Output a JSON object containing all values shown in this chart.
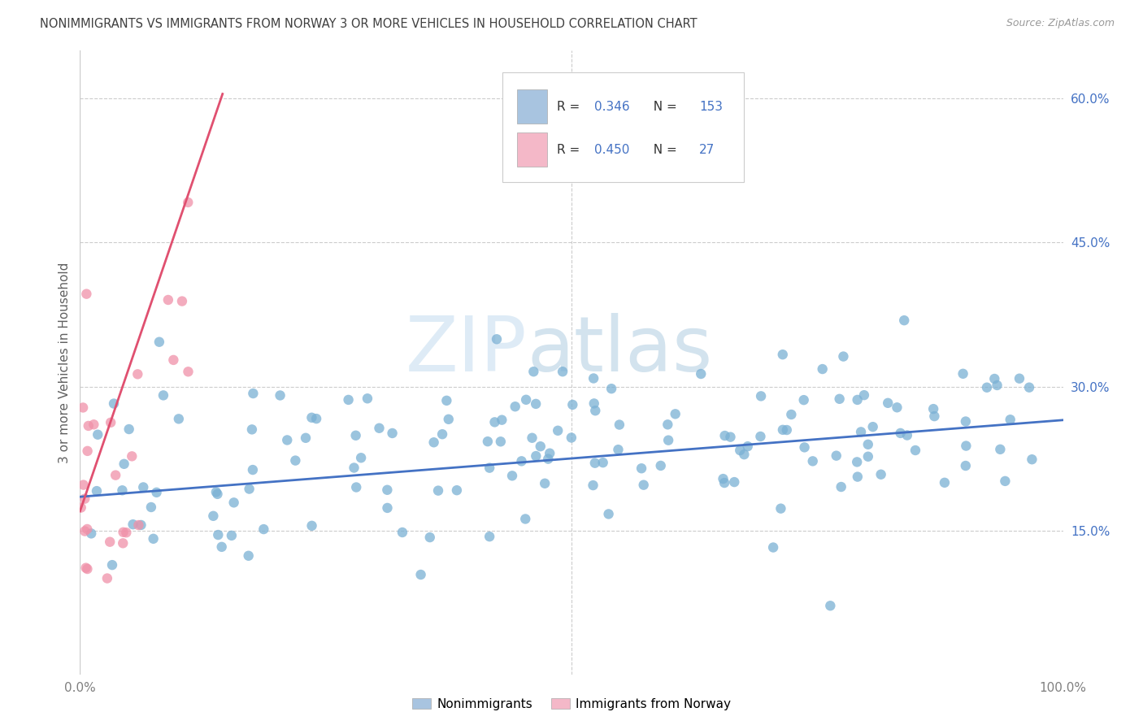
{
  "title": "NONIMMIGRANTS VS IMMIGRANTS FROM NORWAY 3 OR MORE VEHICLES IN HOUSEHOLD CORRELATION CHART",
  "source": "Source: ZipAtlas.com",
  "ylabel": "3 or more Vehicles in Household",
  "xlim": [
    0,
    1.0
  ],
  "ylim": [
    0,
    0.65
  ],
  "yticks": [
    0.15,
    0.3,
    0.45,
    0.6
  ],
  "yticklabels": [
    "15.0%",
    "30.0%",
    "45.0%",
    "60.0%"
  ],
  "legend_labels": [
    "Nonimmigrants",
    "Immigrants from Norway"
  ],
  "legend_colors": [
    "#a8c4e0",
    "#f4b8c8"
  ],
  "r_nonimm": "0.346",
  "n_nonimm": "153",
  "r_imm": "0.450",
  "n_imm": "27",
  "nonimm_color": "#7ab0d4",
  "imm_color": "#f090a8",
  "nonimm_line_color": "#4472c4",
  "imm_line_color": "#e05070",
  "watermark_zip": "ZIP",
  "watermark_atlas": "atlas",
  "background_color": "#ffffff",
  "grid_color": "#cccccc",
  "title_color": "#404040",
  "axis_label_color": "#606060",
  "tick_color_right": "#4472c4",
  "r_label_color": "#333333",
  "n_label_color": "#4472c4"
}
